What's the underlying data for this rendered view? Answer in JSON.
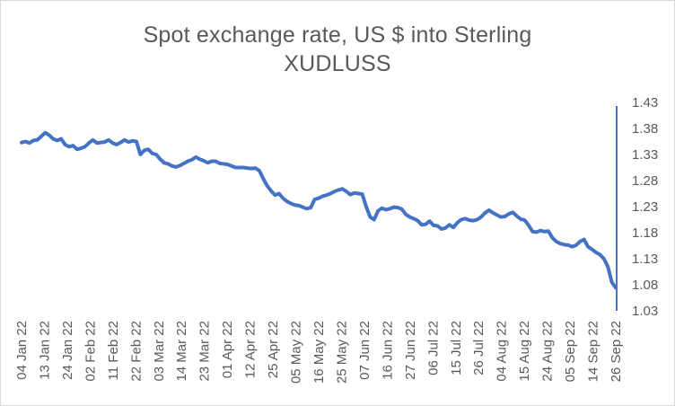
{
  "title": {
    "line1": "Spot exchange rate, US $ into Sterling",
    "line2": "XUDLUSS"
  },
  "colors": {
    "series": "#4472C4",
    "text": "#595959",
    "axis": "#4472C4",
    "border": "#d9d9d9"
  },
  "chart_data": {
    "type": "line",
    "title": "Spot exchange rate, US $ into Sterling XUDLUSS",
    "xlabel": "",
    "ylabel": "",
    "ylim": [
      1.03,
      1.43
    ],
    "y_ticks": [
      1.03,
      1.08,
      1.13,
      1.18,
      1.23,
      1.28,
      1.33,
      1.38,
      1.43
    ],
    "y_tick_labels": [
      "1.03",
      "1.08",
      "1.13",
      "1.18",
      "1.23",
      "1.28",
      "1.33",
      "1.38",
      "1.43"
    ],
    "y_axis_position": "right",
    "grid": false,
    "legend": "none",
    "x_tick_labels": [
      "04 Jan 22",
      "13 Jan 22",
      "24 Jan 22",
      "02 Feb 22",
      "11 Feb 22",
      "22 Feb 22",
      "03 Mar 22",
      "14 Mar 22",
      "23 Mar 22",
      "01 Apr 22",
      "12 Apr 22",
      "25 Apr 22",
      "05 May 22",
      "16 May 22",
      "25 May 22",
      "07 Jun 22",
      "16 Jun 22",
      "27 Jun 22",
      "06 Jul 22",
      "15 Jul 22",
      "26 Jul 22",
      "04 Aug 22",
      "15 Aug 22",
      "24 Aug 22",
      "05 Sep 22",
      "14 Sep 22",
      "26 Sep 22"
    ],
    "series": [
      {
        "values": [
          1.353,
          1.355,
          1.352,
          1.357,
          1.358,
          1.365,
          1.372,
          1.367,
          1.36,
          1.357,
          1.36,
          1.349,
          1.345,
          1.347,
          1.34,
          1.342,
          1.345,
          1.352,
          1.358,
          1.352,
          1.353,
          1.354,
          1.358,
          1.352,
          1.349,
          1.353,
          1.358,
          1.354,
          1.356,
          1.355,
          1.33,
          1.338,
          1.34,
          1.332,
          1.33,
          1.321,
          1.314,
          1.312,
          1.308,
          1.306,
          1.309,
          1.313,
          1.317,
          1.32,
          1.325,
          1.321,
          1.318,
          1.314,
          1.317,
          1.317,
          1.313,
          1.312,
          1.311,
          1.308,
          1.305,
          1.305,
          1.305,
          1.304,
          1.303,
          1.304,
          1.299,
          1.284,
          1.27,
          1.26,
          1.252,
          1.255,
          1.246,
          1.24,
          1.236,
          1.233,
          1.232,
          1.229,
          1.226,
          1.228,
          1.244,
          1.246,
          1.25,
          1.252,
          1.255,
          1.259,
          1.262,
          1.264,
          1.259,
          1.253,
          1.256,
          1.255,
          1.254,
          1.23,
          1.21,
          1.205,
          1.222,
          1.227,
          1.224,
          1.226,
          1.229,
          1.228,
          1.225,
          1.215,
          1.21,
          1.207,
          1.203,
          1.195,
          1.196,
          1.202,
          1.194,
          1.193,
          1.187,
          1.189,
          1.195,
          1.19,
          1.199,
          1.205,
          1.207,
          1.204,
          1.203,
          1.205,
          1.21,
          1.218,
          1.223,
          1.218,
          1.214,
          1.21,
          1.211,
          1.216,
          1.219,
          1.212,
          1.206,
          1.204,
          1.194,
          1.182,
          1.181,
          1.184,
          1.182,
          1.183,
          1.17,
          1.163,
          1.159,
          1.157,
          1.156,
          1.153,
          1.156,
          1.163,
          1.167,
          1.153,
          1.148,
          1.142,
          1.138,
          1.13,
          1.115,
          1.085,
          1.074
        ]
      }
    ]
  }
}
